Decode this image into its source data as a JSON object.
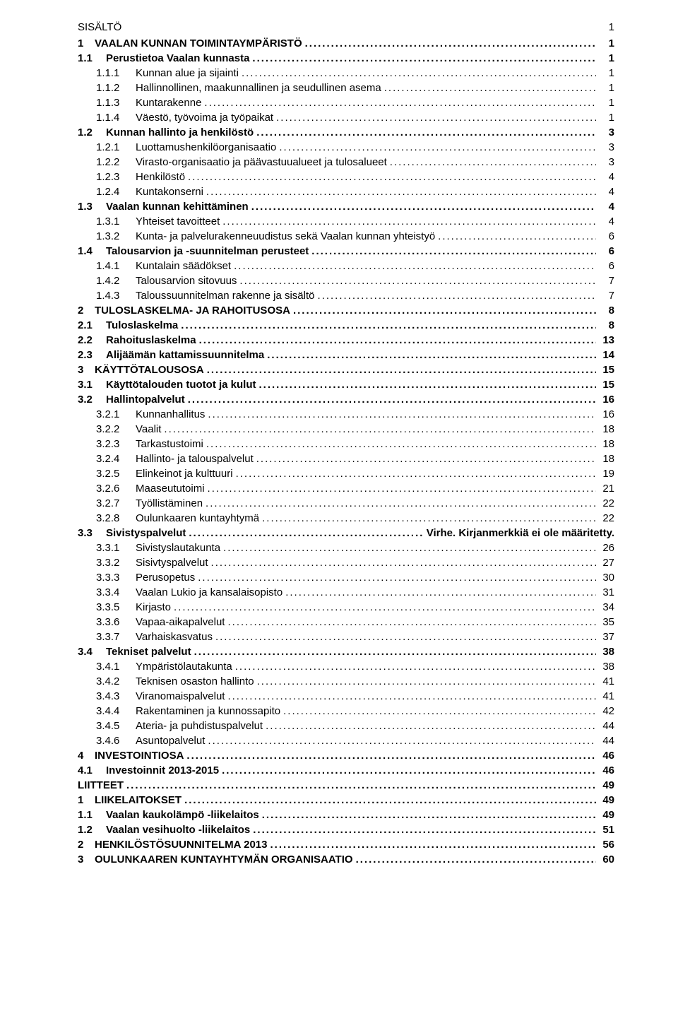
{
  "page_number": "1",
  "title": "SISÄLTÖ",
  "font": {
    "family": "Arial",
    "size_pt": 11
  },
  "colors": {
    "text": "#000000",
    "background": "#ffffff"
  },
  "entries": [
    {
      "num": "1",
      "label": "VAALAN KUNNAN TOIMINTAYMPÄRISTÖ",
      "page": "1",
      "level": 0
    },
    {
      "num": "1.1",
      "label": "Perustietoa Vaalan kunnasta",
      "page": "1",
      "level": 1
    },
    {
      "num": "1.1.1",
      "label": "Kunnan alue ja sijainti",
      "page": "1",
      "level": 2
    },
    {
      "num": "1.1.2",
      "label": "Hallinnollinen, maakunnallinen ja seudullinen asema",
      "page": "1",
      "level": 2
    },
    {
      "num": "1.1.3",
      "label": "Kuntarakenne",
      "page": "1",
      "level": 2
    },
    {
      "num": "1.1.4",
      "label": "Väestö, työvoima ja työpaikat",
      "page": "1",
      "level": 2
    },
    {
      "num": "1.2",
      "label": "Kunnan hallinto ja henkilöstö",
      "page": "3",
      "level": 1
    },
    {
      "num": "1.2.1",
      "label": "Luottamushenkilöorganisaatio",
      "page": "3",
      "level": 2
    },
    {
      "num": "1.2.2",
      "label": "Virasto-organisaatio ja päävastuualueet ja  tulosalueet",
      "page": "3",
      "level": 2
    },
    {
      "num": "1.2.3",
      "label": "Henkilöstö",
      "page": "4",
      "level": 2
    },
    {
      "num": "1.2.4",
      "label": "Kuntakonserni",
      "page": "4",
      "level": 2
    },
    {
      "num": "1.3",
      "label": "Vaalan kunnan kehittäminen",
      "page": "4",
      "level": 1
    },
    {
      "num": "1.3.1",
      "label": "Yhteiset tavoitteet",
      "page": "4",
      "level": 2
    },
    {
      "num": "1.3.2",
      "label": "Kunta- ja palvelurakenneuudistus sekä Vaalan kunnan yhteistyö",
      "page": "6",
      "level": 2
    },
    {
      "num": "1.4",
      "label": "Talousarvion ja -suunnitelman perusteet",
      "page": "6",
      "level": 1
    },
    {
      "num": "1.4.1",
      "label": "Kuntalain säädökset",
      "page": "6",
      "level": 2
    },
    {
      "num": "1.4.2",
      "label": "Talousarvion sitovuus",
      "page": "7",
      "level": 2
    },
    {
      "num": "1.4.3",
      "label": "Taloussuunnitelman rakenne ja sisältö",
      "page": "7",
      "level": 2
    },
    {
      "num": "2",
      "label": "TULOSLASKELMA- JA RAHOITUSOSA",
      "page": "8",
      "level": 0
    },
    {
      "num": "2.1",
      "label": "Tuloslaskelma",
      "page": "8",
      "level": 1
    },
    {
      "num": "2.2",
      "label": "Rahoituslaskelma",
      "page": "13",
      "level": 1
    },
    {
      "num": "2.3",
      "label": "Alijäämän kattamissuunnitelma",
      "page": "14",
      "level": 1
    },
    {
      "num": "3",
      "label": "KÄYTTÖTALOUSOSA",
      "page": "15",
      "level": 0
    },
    {
      "num": "3.1",
      "label": "Käyttötalouden tuotot ja kulut",
      "page": "15",
      "level": 1
    },
    {
      "num": "3.2",
      "label": "Hallintopalvelut",
      "page": "16",
      "level": 1
    },
    {
      "num": "3.2.1",
      "label": "Kunnanhallitus",
      "page": "16",
      "level": 2
    },
    {
      "num": "3.2.2",
      "label": "Vaalit",
      "page": "18",
      "level": 2
    },
    {
      "num": "3.2.3",
      "label": "Tarkastustoimi",
      "page": "18",
      "level": 2
    },
    {
      "num": "3.2.4",
      "label": "Hallinto- ja talouspalvelut",
      "page": "18",
      "level": 2
    },
    {
      "num": "3.2.5",
      "label": "Elinkeinot ja kulttuuri",
      "page": "19",
      "level": 2
    },
    {
      "num": "3.2.6",
      "label": "Maaseututoimi",
      "page": "21",
      "level": 2
    },
    {
      "num": "3.2.7",
      "label": "Työllistäminen",
      "page": "22",
      "level": 2
    },
    {
      "num": "3.2.8",
      "label": "Oulunkaaren kuntayhtymä",
      "page": "22",
      "level": 2
    },
    {
      "num": "3.3",
      "label": "Sivistyspalvelut",
      "page": "Virhe. Kirjanmerkkiä ei ole määritetty.",
      "level": 1,
      "noLeader": false
    },
    {
      "num": "3.3.1",
      "label": "Sivistyslautakunta",
      "page": "26",
      "level": 2
    },
    {
      "num": "3.3.2",
      "label": "Sisivtyspalvelut",
      "page": "27",
      "level": 2
    },
    {
      "num": "3.3.3",
      "label": "Perusopetus",
      "page": "30",
      "level": 2
    },
    {
      "num": "3.3.4",
      "label": "Vaalan Lukio ja kansalaisopisto",
      "page": "31",
      "level": 2
    },
    {
      "num": "3.3.5",
      "label": "Kirjasto",
      "page": "34",
      "level": 2
    },
    {
      "num": "3.3.6",
      "label": "Vapaa-aikapalvelut",
      "page": "35",
      "level": 2
    },
    {
      "num": "3.3.7",
      "label": "Varhaiskasvatus",
      "page": "37",
      "level": 2
    },
    {
      "num": "3.4",
      "label": "Tekniset palvelut",
      "page": "38",
      "level": 1
    },
    {
      "num": "3.4.1",
      "label": "Ympäristölautakunta",
      "page": "38",
      "level": 2
    },
    {
      "num": "3.4.2",
      "label": "Teknisen osaston hallinto",
      "page": "41",
      "level": 2
    },
    {
      "num": "3.4.3",
      "label": "Viranomaispalvelut",
      "page": "41",
      "level": 2
    },
    {
      "num": "3.4.4",
      "label": "Rakentaminen ja kunnossapito",
      "page": "42",
      "level": 2
    },
    {
      "num": "3.4.5",
      "label": "Ateria- ja puhdistuspalvelut",
      "page": "44",
      "level": 2
    },
    {
      "num": "3.4.6",
      "label": "Asuntopalvelut",
      "page": "44",
      "level": 2
    },
    {
      "num": "4",
      "label": "INVESTOINTIOSA",
      "page": "46",
      "level": 0
    },
    {
      "num": "4.1",
      "label": "Investoinnit 2013-2015",
      "page": "46",
      "level": 1
    },
    {
      "num": "",
      "label": "LIITTEET",
      "page": "49",
      "level": 0
    },
    {
      "num": "1",
      "label": "LIIKELAITOKSET",
      "page": "49",
      "level": 0
    },
    {
      "num": "1.1",
      "label": "Vaalan kaukolämpö -liikelaitos",
      "page": "49",
      "level": 1
    },
    {
      "num": "1.2",
      "label": "Vaalan vesihuolto -liikelaitos",
      "page": "51",
      "level": 1
    },
    {
      "num": "2",
      "label": "HENKILÖSTÖSUUNNITELMA 2013",
      "page": "56",
      "level": 0
    },
    {
      "num": "3",
      "label": "OULUNKAAREN KUNTAYHTYMÄN ORGANISAATIO",
      "page": "60",
      "level": 0
    }
  ]
}
